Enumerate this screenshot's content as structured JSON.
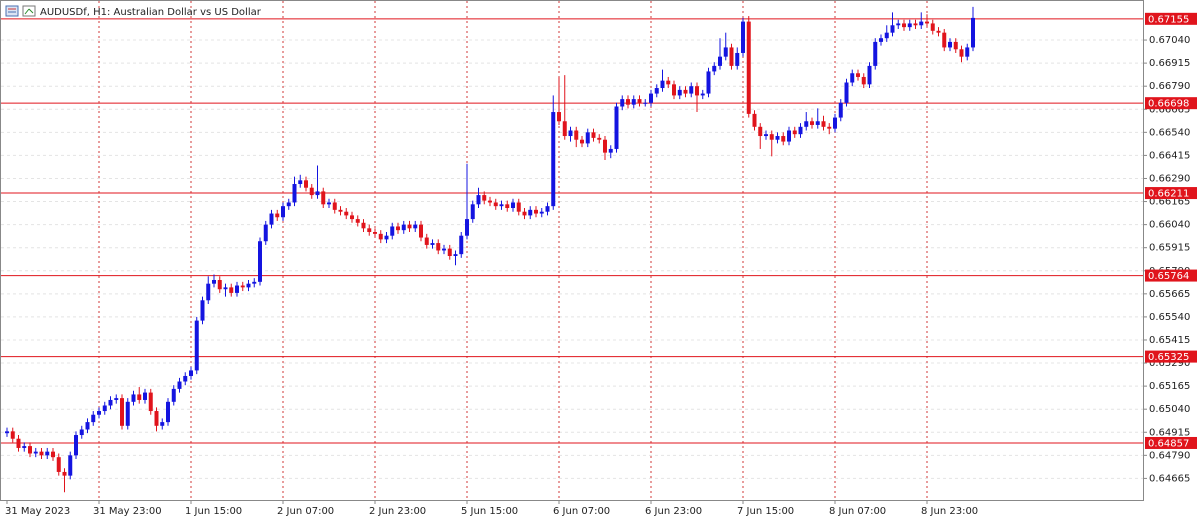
{
  "chart_data": {
    "type": "candlestick",
    "title": "AUDUSDf, H1:  Australian Dollar vs US Dollar",
    "up_color": "#1414e0",
    "down_color": "#e0141c",
    "level_color": "#e0141c",
    "ylim": [
      0.64548,
      0.67257
    ],
    "yticks": [
      {
        "value": 0.6704,
        "label": "0.67040"
      },
      0.66915,
      {
        "value": 0.6679,
        "label": "0.66790"
      },
      0.66665,
      {
        "value": 0.6654,
        "label": "0.66540"
      },
      0.66415,
      {
        "value": 0.6629,
        "label": "0.66290"
      },
      0.66165,
      {
        "value": 0.6604,
        "label": "0.66040"
      },
      0.65915,
      {
        "value": 0.6579,
        "label": "0.65790"
      },
      0.65665,
      {
        "value": 0.6554,
        "label": "0.65540"
      },
      0.65415,
      {
        "value": 0.6529,
        "label": "0.65290"
      },
      0.65165,
      {
        "value": 0.6504,
        "label": "0.65040"
      },
      0.64915,
      {
        "value": 0.6479,
        "label": "0.64790"
      },
      0.64665
    ],
    "levels": [
      0.67155,
      0.66698,
      0.66211,
      0.65764,
      0.65325,
      0.64857
    ],
    "xticks": [
      {
        "value": 0,
        "label": "31 May 2023"
      },
      {
        "value": 16,
        "label": "31 May 23:00"
      },
      {
        "value": 32,
        "label": "1 Jun 15:00"
      },
      {
        "value": 48,
        "label": "2 Jun 07:00"
      },
      {
        "value": 64,
        "label": "2 Jun 23:00"
      },
      {
        "value": 80,
        "label": "5 Jun 15:00"
      },
      {
        "value": 96,
        "label": "6 Jun 07:00"
      },
      {
        "value": 112,
        "label": "6 Jun 23:00"
      },
      {
        "value": 128,
        "label": "7 Jun 15:00"
      },
      {
        "value": 144,
        "label": "8 Jun 07:00"
      },
      {
        "value": 160,
        "label": "8 Jun 23:00"
      }
    ],
    "ohlc": [
      [
        0.6491,
        0.6494,
        0.6489,
        0.6492
      ],
      [
        0.6492,
        0.6494,
        0.6486,
        0.6488
      ],
      [
        0.6488,
        0.649,
        0.6481,
        0.6483
      ],
      [
        0.6483,
        0.6486,
        0.6481,
        0.6484
      ],
      [
        0.6484,
        0.6486,
        0.6478,
        0.648
      ],
      [
        0.648,
        0.6483,
        0.6478,
        0.6481
      ],
      [
        0.6481,
        0.6483,
        0.6477,
        0.6479
      ],
      [
        0.6479,
        0.6483,
        0.6477,
        0.6481
      ],
      [
        0.6481,
        0.6483,
        0.6476,
        0.6478
      ],
      [
        0.6478,
        0.648,
        0.6468,
        0.647
      ],
      [
        0.647,
        0.6472,
        0.6459,
        0.6468
      ],
      [
        0.6468,
        0.6481,
        0.6466,
        0.6479
      ],
      [
        0.6479,
        0.6492,
        0.6477,
        0.649
      ],
      [
        0.649,
        0.6495,
        0.6488,
        0.6493
      ],
      [
        0.6493,
        0.6499,
        0.6491,
        0.6497
      ],
      [
        0.6497,
        0.6503,
        0.6495,
        0.6501
      ],
      [
        0.6501,
        0.6505,
        0.6499,
        0.6503
      ],
      [
        0.6503,
        0.6508,
        0.6501,
        0.6506
      ],
      [
        0.6506,
        0.6511,
        0.6504,
        0.6509
      ],
      [
        0.6509,
        0.6512,
        0.6507,
        0.651
      ],
      [
        0.651,
        0.6512,
        0.6493,
        0.6495
      ],
      [
        0.6495,
        0.651,
        0.6493,
        0.6508
      ],
      [
        0.6508,
        0.6514,
        0.6506,
        0.6512
      ],
      [
        0.6512,
        0.6516,
        0.6507,
        0.6509
      ],
      [
        0.6509,
        0.6515,
        0.6507,
        0.6513
      ],
      [
        0.6513,
        0.6515,
        0.6501,
        0.6503
      ],
      [
        0.6503,
        0.6505,
        0.6492,
        0.6495
      ],
      [
        0.6495,
        0.6499,
        0.6493,
        0.6497
      ],
      [
        0.6497,
        0.651,
        0.6495,
        0.6508
      ],
      [
        0.6508,
        0.6517,
        0.6506,
        0.6515
      ],
      [
        0.6515,
        0.6521,
        0.6513,
        0.6519
      ],
      [
        0.6519,
        0.6524,
        0.6517,
        0.6522
      ],
      [
        0.6522,
        0.6527,
        0.652,
        0.6525
      ],
      [
        0.6525,
        0.6554,
        0.6523,
        0.6552
      ],
      [
        0.6552,
        0.6565,
        0.655,
        0.6563
      ],
      [
        0.6563,
        0.6576,
        0.6561,
        0.6572
      ],
      [
        0.6572,
        0.6577,
        0.657,
        0.6574
      ],
      [
        0.6574,
        0.6576,
        0.6567,
        0.6569
      ],
      [
        0.6569,
        0.6572,
        0.6565,
        0.657
      ],
      [
        0.657,
        0.6572,
        0.6565,
        0.6567
      ],
      [
        0.6567,
        0.6573,
        0.6565,
        0.6571
      ],
      [
        0.6571,
        0.6573,
        0.6568,
        0.657
      ],
      [
        0.657,
        0.6574,
        0.6568,
        0.6572
      ],
      [
        0.6572,
        0.6575,
        0.657,
        0.6573
      ],
      [
        0.6573,
        0.6597,
        0.6571,
        0.6595
      ],
      [
        0.6595,
        0.6606,
        0.6593,
        0.6604
      ],
      [
        0.6604,
        0.6612,
        0.6602,
        0.661
      ],
      [
        0.661,
        0.6612,
        0.6606,
        0.6608
      ],
      [
        0.6608,
        0.6616,
        0.6606,
        0.6614
      ],
      [
        0.6614,
        0.6618,
        0.6612,
        0.6616
      ],
      [
        0.6616,
        0.663,
        0.6614,
        0.6626
      ],
      [
        0.6626,
        0.6631,
        0.6624,
        0.6628
      ],
      [
        0.6628,
        0.663,
        0.6622,
        0.6624
      ],
      [
        0.6624,
        0.6626,
        0.6618,
        0.662
      ],
      [
        0.662,
        0.6636,
        0.6618,
        0.6622
      ],
      [
        0.6622,
        0.6624,
        0.6613,
        0.6615
      ],
      [
        0.6615,
        0.6618,
        0.6613,
        0.6616
      ],
      [
        0.6616,
        0.6618,
        0.661,
        0.6612
      ],
      [
        0.6612,
        0.6614,
        0.6609,
        0.6611
      ],
      [
        0.6611,
        0.6613,
        0.6607,
        0.6609
      ],
      [
        0.6609,
        0.6611,
        0.6605,
        0.6607
      ],
      [
        0.6607,
        0.6609,
        0.6603,
        0.6605
      ],
      [
        0.6605,
        0.6607,
        0.66,
        0.6602
      ],
      [
        0.6602,
        0.6604,
        0.6598,
        0.66
      ],
      [
        0.66,
        0.6602,
        0.6597,
        0.6599
      ],
      [
        0.6599,
        0.6601,
        0.6594,
        0.6596
      ],
      [
        0.6596,
        0.66,
        0.6594,
        0.6598
      ],
      [
        0.6598,
        0.6605,
        0.6596,
        0.6603
      ],
      [
        0.6603,
        0.6605,
        0.6599,
        0.6601
      ],
      [
        0.6601,
        0.6606,
        0.6599,
        0.6604
      ],
      [
        0.6604,
        0.6606,
        0.66,
        0.6602
      ],
      [
        0.6602,
        0.6606,
        0.66,
        0.6604
      ],
      [
        0.6604,
        0.6606,
        0.6595,
        0.6597
      ],
      [
        0.6597,
        0.6599,
        0.6591,
        0.6593
      ],
      [
        0.6593,
        0.6596,
        0.6591,
        0.6594
      ],
      [
        0.6594,
        0.6596,
        0.6588,
        0.659
      ],
      [
        0.659,
        0.6593,
        0.6588,
        0.6591
      ],
      [
        0.6591,
        0.6593,
        0.6585,
        0.6587
      ],
      [
        0.6587,
        0.659,
        0.6582,
        0.6588
      ],
      [
        0.6588,
        0.66,
        0.6586,
        0.6598
      ],
      [
        0.6598,
        0.6637,
        0.6596,
        0.6607
      ],
      [
        0.6607,
        0.6617,
        0.6605,
        0.6615
      ],
      [
        0.6615,
        0.6624,
        0.6613,
        0.662
      ],
      [
        0.662,
        0.6622,
        0.6615,
        0.6617
      ],
      [
        0.6617,
        0.6619,
        0.6614,
        0.6616
      ],
      [
        0.6616,
        0.6618,
        0.6612,
        0.6614
      ],
      [
        0.6614,
        0.6617,
        0.6612,
        0.6615
      ],
      [
        0.6615,
        0.6617,
        0.6611,
        0.6613
      ],
      [
        0.6613,
        0.6618,
        0.6611,
        0.6616
      ],
      [
        0.6616,
        0.6618,
        0.6609,
        0.6611
      ],
      [
        0.6611,
        0.6613,
        0.6607,
        0.6609
      ],
      [
        0.6609,
        0.6614,
        0.6607,
        0.6612
      ],
      [
        0.6612,
        0.6614,
        0.6608,
        0.661
      ],
      [
        0.661,
        0.6613,
        0.6608,
        0.6611
      ],
      [
        0.6611,
        0.6616,
        0.6609,
        0.6614
      ],
      [
        0.6614,
        0.6674,
        0.6612,
        0.6665
      ],
      [
        0.6665,
        0.6684,
        0.6658,
        0.666
      ],
      [
        0.666,
        0.6685,
        0.665,
        0.6652
      ],
      [
        0.6652,
        0.6657,
        0.6649,
        0.6655
      ],
      [
        0.6655,
        0.6657,
        0.6646,
        0.665
      ],
      [
        0.665,
        0.6652,
        0.6646,
        0.6648
      ],
      [
        0.6648,
        0.6656,
        0.6646,
        0.6654
      ],
      [
        0.6654,
        0.6656,
        0.6649,
        0.6651
      ],
      [
        0.6651,
        0.6653,
        0.6648,
        0.665
      ],
      [
        0.665,
        0.6652,
        0.6639,
        0.6643
      ],
      [
        0.6643,
        0.6647,
        0.664,
        0.6645
      ],
      [
        0.6645,
        0.667,
        0.6643,
        0.6668
      ],
      [
        0.6668,
        0.6674,
        0.6666,
        0.6672
      ],
      [
        0.6672,
        0.6674,
        0.6667,
        0.6669
      ],
      [
        0.6669,
        0.6674,
        0.6667,
        0.6672
      ],
      [
        0.6672,
        0.6674,
        0.6668,
        0.667
      ],
      [
        0.667,
        0.6672,
        0.6668,
        0.667
      ],
      [
        0.667,
        0.6677,
        0.6668,
        0.6675
      ],
      [
        0.6675,
        0.668,
        0.6673,
        0.6678
      ],
      [
        0.6678,
        0.6688,
        0.6676,
        0.6682
      ],
      [
        0.6682,
        0.6684,
        0.6678,
        0.668
      ],
      [
        0.668,
        0.6682,
        0.6672,
        0.6674
      ],
      [
        0.6674,
        0.6679,
        0.6672,
        0.6677
      ],
      [
        0.6677,
        0.6679,
        0.6673,
        0.6675
      ],
      [
        0.6675,
        0.6681,
        0.6673,
        0.6679
      ],
      [
        0.6679,
        0.6681,
        0.6665,
        0.6674
      ],
      [
        0.6674,
        0.6677,
        0.6672,
        0.6675
      ],
      [
        0.6675,
        0.6689,
        0.6673,
        0.6687
      ],
      [
        0.6687,
        0.6692,
        0.6685,
        0.669
      ],
      [
        0.669,
        0.6705,
        0.6688,
        0.6695
      ],
      [
        0.6695,
        0.6708,
        0.6693,
        0.67
      ],
      [
        0.67,
        0.6702,
        0.6688,
        0.669
      ],
      [
        0.669,
        0.67,
        0.6688,
        0.6697
      ],
      [
        0.6697,
        0.6716,
        0.6695,
        0.6714
      ],
      [
        0.6714,
        0.6717,
        0.6662,
        0.6664
      ],
      [
        0.6664,
        0.6666,
        0.6655,
        0.6657
      ],
      [
        0.6657,
        0.6659,
        0.6645,
        0.6652
      ],
      [
        0.6652,
        0.6655,
        0.665,
        0.6653
      ],
      [
        0.6653,
        0.6655,
        0.6641,
        0.665
      ],
      [
        0.665,
        0.6654,
        0.6648,
        0.6652
      ],
      [
        0.6652,
        0.6654,
        0.6647,
        0.6649
      ],
      [
        0.6649,
        0.6657,
        0.6647,
        0.6655
      ],
      [
        0.6655,
        0.6657,
        0.6651,
        0.6653
      ],
      [
        0.6653,
        0.6659,
        0.6651,
        0.6657
      ],
      [
        0.6657,
        0.6665,
        0.6655,
        0.666
      ],
      [
        0.666,
        0.6662,
        0.6656,
        0.6658
      ],
      [
        0.6658,
        0.6667,
        0.6656,
        0.666
      ],
      [
        0.666,
        0.6663,
        0.6655,
        0.6657
      ],
      [
        0.6657,
        0.6659,
        0.6653,
        0.6656
      ],
      [
        0.6656,
        0.6664,
        0.6654,
        0.6662
      ],
      [
        0.6662,
        0.6672,
        0.666,
        0.667
      ],
      [
        0.667,
        0.6683,
        0.6668,
        0.6681
      ],
      [
        0.6681,
        0.6688,
        0.6679,
        0.6686
      ],
      [
        0.6686,
        0.6688,
        0.6682,
        0.6684
      ],
      [
        0.6684,
        0.6686,
        0.6678,
        0.668
      ],
      [
        0.668,
        0.6692,
        0.6678,
        0.669
      ],
      [
        0.669,
        0.6705,
        0.6688,
        0.6703
      ],
      [
        0.6703,
        0.6707,
        0.6701,
        0.6705
      ],
      [
        0.6705,
        0.6712,
        0.6703,
        0.6708
      ],
      [
        0.6708,
        0.6719,
        0.6706,
        0.6712
      ],
      [
        0.6712,
        0.6715,
        0.671,
        0.6713
      ],
      [
        0.6713,
        0.6715,
        0.6709,
        0.6711
      ],
      [
        0.6711,
        0.6715,
        0.6709,
        0.6713
      ],
      [
        0.6713,
        0.6715,
        0.671,
        0.6712
      ],
      [
        0.6712,
        0.6719,
        0.671,
        0.6714
      ],
      [
        0.6714,
        0.6718,
        0.6711,
        0.6713
      ],
      [
        0.6713,
        0.6715,
        0.6707,
        0.6709
      ],
      [
        0.6709,
        0.6711,
        0.6706,
        0.6708
      ],
      [
        0.6708,
        0.671,
        0.6698,
        0.67
      ],
      [
        0.67,
        0.6705,
        0.6698,
        0.6703
      ],
      [
        0.6703,
        0.6705,
        0.6697,
        0.6699
      ],
      [
        0.6699,
        0.6701,
        0.6692,
        0.6695
      ],
      [
        0.6695,
        0.6702,
        0.6693,
        0.67
      ],
      [
        0.67,
        0.6722,
        0.6698,
        0.6716
      ]
    ]
  }
}
